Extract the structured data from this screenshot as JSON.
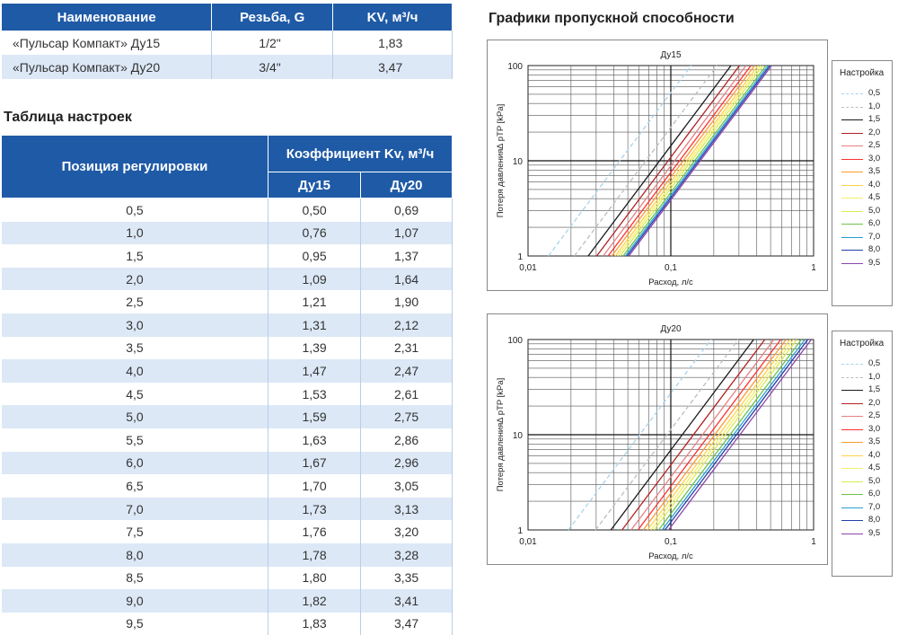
{
  "models_table": {
    "headers": [
      "Наименование",
      "Резьба, G",
      "KV, м³/ч"
    ],
    "rows": [
      [
        "«Пульсар Компакт» Ду15",
        "1/2\"",
        "1,83"
      ],
      [
        "«Пульсар Компакт» Ду20",
        "3/4\"",
        "3,47"
      ]
    ]
  },
  "settings_title": "Таблица настроек",
  "settings_table": {
    "header_position": "Позиция регулировки",
    "header_coef": "Коэффициент Kv, м³/ч",
    "sub_headers": [
      "Ду15",
      "Ду20"
    ],
    "rows": [
      [
        "0,5",
        "0,50",
        "0,69"
      ],
      [
        "1,0",
        "0,76",
        "1,07"
      ],
      [
        "1,5",
        "0,95",
        "1,37"
      ],
      [
        "2,0",
        "1,09",
        "1,64"
      ],
      [
        "2,5",
        "1,21",
        "1,90"
      ],
      [
        "3,0",
        "1,31",
        "2,12"
      ],
      [
        "3,5",
        "1,39",
        "2,31"
      ],
      [
        "4,0",
        "1,47",
        "2,47"
      ],
      [
        "4,5",
        "1,53",
        "2,61"
      ],
      [
        "5,0",
        "1,59",
        "2,75"
      ],
      [
        "5,5",
        "1,63",
        "2,86"
      ],
      [
        "6,0",
        "1,67",
        "2,96"
      ],
      [
        "6,5",
        "1,70",
        "3,05"
      ],
      [
        "7,0",
        "1,73",
        "3,13"
      ],
      [
        "7,5",
        "1,76",
        "3,20"
      ],
      [
        "8,0",
        "1,78",
        "3,28"
      ],
      [
        "8,5",
        "1,80",
        "3,35"
      ],
      [
        "9,0",
        "1,82",
        "3,41"
      ],
      [
        "9,5",
        "1,83",
        "3,47"
      ]
    ]
  },
  "charts_title": "Графики пропускной способности",
  "chart_data": [
    {
      "type": "line",
      "title": "Ду15",
      "xlabel": "Расход, л/с",
      "ylabel": "Потеря давления∆ pTP [kPa]",
      "x_scale": "log",
      "y_scale": "log",
      "xlim": [
        0.01,
        1
      ],
      "ylim": [
        1,
        100
      ],
      "x_ticks": [
        "0,01",
        "0,1",
        "1"
      ],
      "y_ticks": [
        "1",
        "10",
        "100"
      ],
      "grid": true,
      "legend_title": "Настройка",
      "legend_position": "right",
      "series": [
        {
          "name": "0,5",
          "kv": 0.5,
          "color": "#a9d3ec",
          "dashed": true
        },
        {
          "name": "1,0",
          "kv": 0.76,
          "color": "#bdbdbd",
          "dashed": true
        },
        {
          "name": "1,5",
          "kv": 0.95,
          "color": "#1a1a1a",
          "dashed": false
        },
        {
          "name": "2,0",
          "kv": 1.09,
          "color": "#b22222",
          "dashed": false
        },
        {
          "name": "2,5",
          "kv": 1.21,
          "color": "#e88080",
          "dashed": false
        },
        {
          "name": "3,0",
          "kv": 1.31,
          "color": "#ff3030",
          "dashed": false
        },
        {
          "name": "3,5",
          "kv": 1.39,
          "color": "#ff9a30",
          "dashed": false
        },
        {
          "name": "4,0",
          "kv": 1.47,
          "color": "#ffd24a",
          "dashed": false
        },
        {
          "name": "4,5",
          "kv": 1.53,
          "color": "#f3ef6a",
          "dashed": false
        },
        {
          "name": "5,0",
          "kv": 1.59,
          "color": "#d9ec50",
          "dashed": false
        },
        {
          "name": "6,0",
          "kv": 1.67,
          "color": "#6cc24a",
          "dashed": false
        },
        {
          "name": "7,0",
          "kv": 1.73,
          "color": "#2a9fd6",
          "dashed": false
        },
        {
          "name": "8,0",
          "kv": 1.78,
          "color": "#1f3fa8",
          "dashed": false
        },
        {
          "name": "9,5",
          "kv": 1.83,
          "color": "#8e44ad",
          "dashed": false
        }
      ]
    },
    {
      "type": "line",
      "title": "Ду20",
      "xlabel": "Расход, л/с",
      "ylabel": "Потеря давления∆ pTP [kPa]",
      "x_scale": "log",
      "y_scale": "log",
      "xlim": [
        0.01,
        1
      ],
      "ylim": [
        1,
        100
      ],
      "x_ticks": [
        "0,01",
        "0,1",
        "1"
      ],
      "y_ticks": [
        "1",
        "10",
        "100"
      ],
      "grid": true,
      "legend_title": "Настройка",
      "legend_position": "right",
      "series": [
        {
          "name": "0,5",
          "kv": 0.69,
          "color": "#a9d3ec",
          "dashed": true
        },
        {
          "name": "1,0",
          "kv": 1.07,
          "color": "#bdbdbd",
          "dashed": true
        },
        {
          "name": "1,5",
          "kv": 1.37,
          "color": "#1a1a1a",
          "dashed": false
        },
        {
          "name": "2,0",
          "kv": 1.64,
          "color": "#b22222",
          "dashed": false
        },
        {
          "name": "2,5",
          "kv": 1.9,
          "color": "#e88080",
          "dashed": false
        },
        {
          "name": "3,0",
          "kv": 2.12,
          "color": "#ff3030",
          "dashed": false
        },
        {
          "name": "3,5",
          "kv": 2.31,
          "color": "#ff9a30",
          "dashed": false
        },
        {
          "name": "4,0",
          "kv": 2.47,
          "color": "#ffd24a",
          "dashed": false
        },
        {
          "name": "4,5",
          "kv": 2.61,
          "color": "#f3ef6a",
          "dashed": false
        },
        {
          "name": "5,0",
          "kv": 2.75,
          "color": "#d9ec50",
          "dashed": false
        },
        {
          "name": "6,0",
          "kv": 2.96,
          "color": "#6cc24a",
          "dashed": false
        },
        {
          "name": "7,0",
          "kv": 3.13,
          "color": "#2a9fd6",
          "dashed": false
        },
        {
          "name": "8,0",
          "kv": 3.28,
          "color": "#1f3fa8",
          "dashed": false
        },
        {
          "name": "9,5",
          "kv": 3.47,
          "color": "#8e44ad",
          "dashed": false
        }
      ]
    }
  ]
}
